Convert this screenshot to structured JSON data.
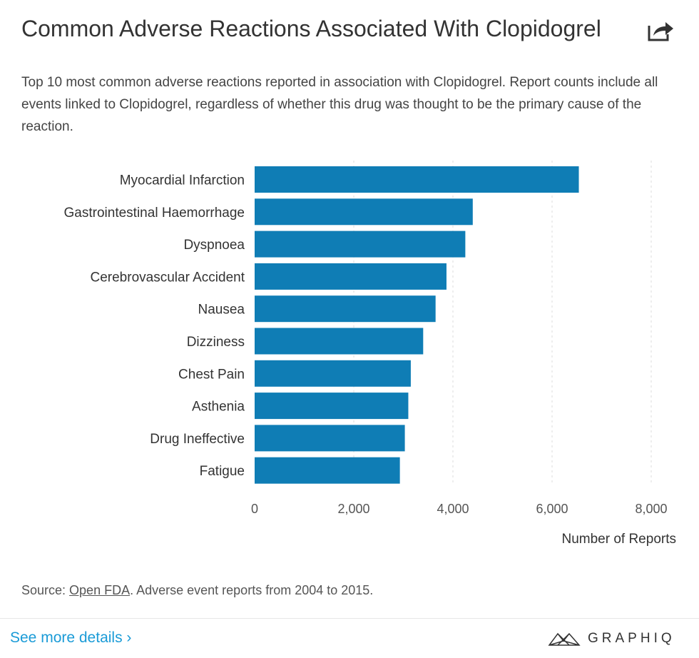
{
  "header": {
    "title": "Common Adverse Reactions Associated With Clopidogrel",
    "share_icon": "share-arrow-icon",
    "subtitle": "Top 10 most common adverse reactions reported in association with Clopidogrel. Report counts include all events linked to Clopidogrel, regardless of whether this drug was thought to be the primary cause of the reaction."
  },
  "chart_data": {
    "type": "bar",
    "orientation": "horizontal",
    "categories": [
      "Myocardial Infarction",
      "Gastrointestinal Haemorrhage",
      "Dyspnoea",
      "Cerebrovascular Accident",
      "Nausea",
      "Dizziness",
      "Chest Pain",
      "Asthenia",
      "Drug Ineffective",
      "Fatigue"
    ],
    "values": [
      6540,
      4400,
      4250,
      3870,
      3650,
      3400,
      3150,
      3100,
      3030,
      2930
    ],
    "xlabel": "Number of Reports",
    "xlim": [
      0,
      8000
    ],
    "xticks": [
      "0",
      "2,000",
      "4,000",
      "6,000",
      "8,000"
    ],
    "grid": "vertical dashed",
    "color": "#0f7db5"
  },
  "footer": {
    "source_prefix": "Source: ",
    "source_link": "Open FDA",
    "source_suffix": ". Adverse event reports from 2004 to 2015.",
    "more_link": "See more details ›",
    "logo_text": "GRAPHIQ"
  }
}
